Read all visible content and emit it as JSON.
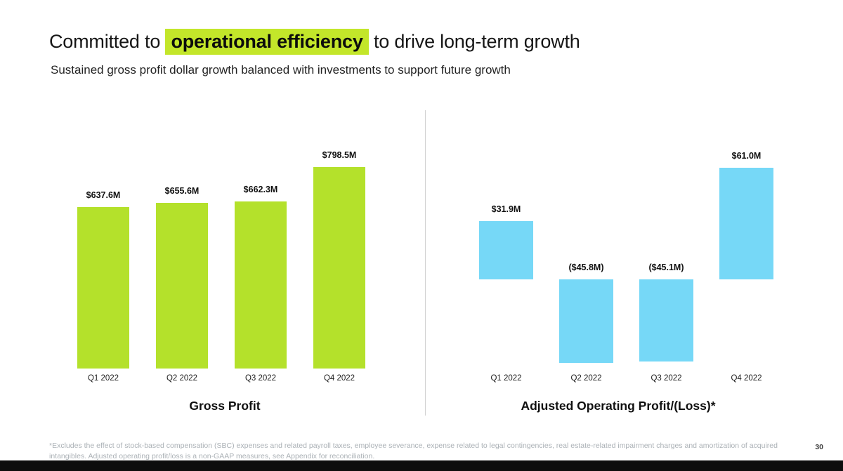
{
  "slide": {
    "title_prefix": "Committed to ",
    "title_highlight": "operational efficiency",
    "title_suffix": " to drive long-term growth",
    "subtitle": "Sustained gross profit dollar growth balanced with investments to support future growth",
    "footnote": "*Excludes the effect of stock-based compensation (SBC) expenses and related payroll taxes, employee severance, expense related to legal contingencies, real estate-related impairment charges and amortization of acquired intangibles. Adjusted operating profit/loss is a non-GAAP measures, see Appendix for reconciliation.",
    "page_number": "30"
  },
  "colors": {
    "title_highlight_bg": "#c3e62a",
    "gross_profit_bar": "#b4e12b",
    "operating_bar": "#76d8f7"
  },
  "chart_data": [
    {
      "type": "bar",
      "title": "Gross Profit",
      "categories": [
        "Q1 2022",
        "Q2 2022",
        "Q3 2022",
        "Q4 2022"
      ],
      "values": [
        637.6,
        655.6,
        662.3,
        798.5
      ],
      "labels": [
        "$637.6M",
        "$655.6M",
        "$662.3M",
        "$798.5M"
      ],
      "unit": "USD millions",
      "ylim": [
        0,
        850
      ],
      "grid": false,
      "legend": false,
      "bar_color": "#b4e12b"
    },
    {
      "type": "bar",
      "title": "Adjusted Operating Profit/(Loss)*",
      "categories": [
        "Q1 2022",
        "Q2 2022",
        "Q3 2022",
        "Q4 2022"
      ],
      "values": [
        31.9,
        -45.8,
        -45.1,
        61.0
      ],
      "labels": [
        "$31.9M",
        "($45.8M)",
        "($45.1M)",
        "$61.0M"
      ],
      "unit": "USD millions",
      "ylim": [
        -60,
        70
      ],
      "grid": false,
      "legend": false,
      "bar_color": "#76d8f7"
    }
  ]
}
